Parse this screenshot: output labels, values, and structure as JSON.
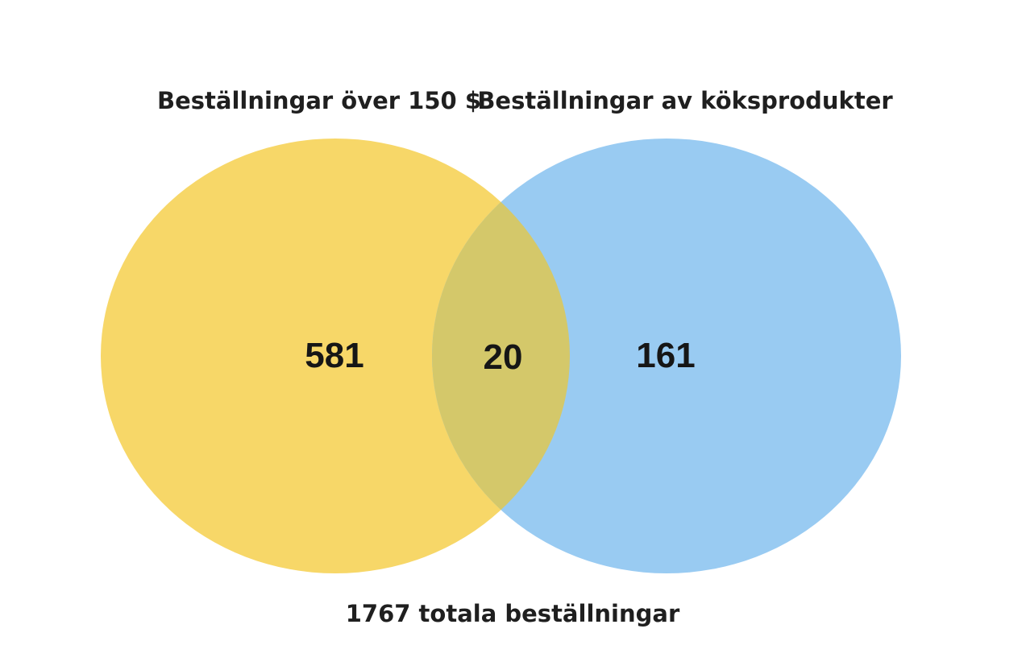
{
  "sets": [
    {
      "name": "Beställningar över 150 $",
      "color": "#f7d768"
    },
    {
      "name": "Beställningar av köksprodukter",
      "color": "#99cbf2"
    }
  ],
  "overlap_color": "#d4c86a",
  "counts": {
    "only_a": "581",
    "both": "20",
    "only_b": "161"
  },
  "total_text": "1767 totala beställningar"
}
